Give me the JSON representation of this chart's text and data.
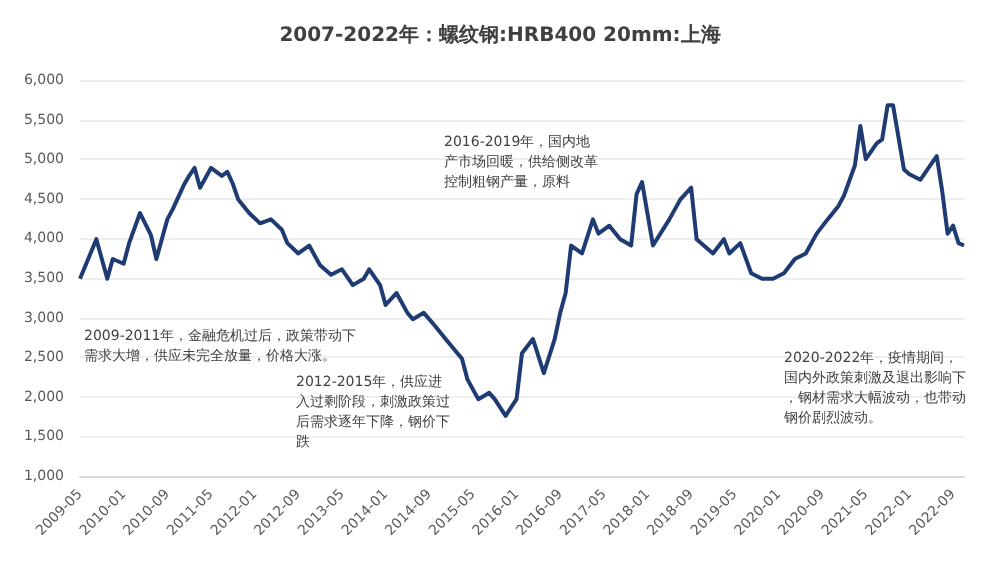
{
  "chart_data": {
    "type": "line",
    "title": "2007-2022年：螺纹钢:HRB400 20mm:上海",
    "x": [
      "2009-05",
      "2009-08",
      "2009-10",
      "2009-11",
      "2010-01",
      "2010-02",
      "2010-04",
      "2010-06",
      "2010-07",
      "2010-09",
      "2010-10",
      "2010-12",
      "2011-01",
      "2011-02",
      "2011-03",
      "2011-05",
      "2011-07",
      "2011-08",
      "2011-09",
      "2011-10",
      "2011-12",
      "2012-02",
      "2012-04",
      "2012-06",
      "2012-07",
      "2012-09",
      "2012-11",
      "2013-01",
      "2013-03",
      "2013-05",
      "2013-07",
      "2013-09",
      "2013-10",
      "2013-12",
      "2014-01",
      "2014-03",
      "2014-05",
      "2014-06",
      "2014-08",
      "2014-10",
      "2014-12",
      "2015-03",
      "2015-04",
      "2015-06",
      "2015-08",
      "2015-09",
      "2015-11",
      "2016-01",
      "2016-02",
      "2016-04",
      "2016-06",
      "2016-08",
      "2016-09",
      "2016-10",
      "2016-11",
      "2017-01",
      "2017-03",
      "2017-04",
      "2017-06",
      "2017-08",
      "2017-10",
      "2017-11",
      "2017-12",
      "2018-02",
      "2018-05",
      "2018-07",
      "2018-09",
      "2018-10",
      "2019-01",
      "2019-03",
      "2019-04",
      "2019-06",
      "2019-08",
      "2019-10",
      "2019-12",
      "2020-02",
      "2020-04",
      "2020-06",
      "2020-08",
      "2020-10",
      "2020-12",
      "2021-01",
      "2021-03",
      "2021-04",
      "2021-05",
      "2021-07",
      "2021-08",
      "2021-09",
      "2021-10",
      "2021-12",
      "2022-01",
      "2022-03",
      "2022-05",
      "2022-06",
      "2022-07",
      "2022-08",
      "2022-09",
      "2022-10",
      "2022-11"
    ],
    "series": [
      {
        "color": "#1f3b73",
        "values": [
          3490,
          3990,
          3490,
          3740,
          3680,
          3940,
          4320,
          4040,
          3740,
          4240,
          4370,
          4670,
          4790,
          4890,
          4640,
          4890,
          4790,
          4840,
          4690,
          4490,
          4320,
          4190,
          4240,
          4110,
          3940,
          3810,
          3910,
          3660,
          3540,
          3610,
          3410,
          3490,
          3610,
          3410,
          3160,
          3310,
          3060,
          2980,
          3060,
          2900,
          2730,
          2480,
          2220,
          1970,
          2050,
          1970,
          1760,
          1970,
          2550,
          2730,
          2300,
          2730,
          3060,
          3310,
          3910,
          3810,
          4240,
          4060,
          4160,
          3990,
          3910,
          4560,
          4710,
          3910,
          4240,
          4490,
          4640,
          3990,
          3810,
          3990,
          3810,
          3940,
          3560,
          3490,
          3490,
          3560,
          3740,
          3810,
          4060,
          4240,
          4410,
          4540,
          4920,
          5420,
          5000,
          5200,
          5250,
          5680,
          5680,
          4870,
          4810,
          4740,
          4940,
          5040,
          4600,
          4060,
          4160,
          3940,
          3910
        ]
      }
    ],
    "xlim": [
      "2009-05",
      "2022-11"
    ],
    "xticks": [
      "2009-05",
      "2010-01",
      "2010-09",
      "2011-05",
      "2012-01",
      "2012-09",
      "2013-05",
      "2014-01",
      "2014-09",
      "2015-05",
      "2016-01",
      "2016-09",
      "2017-05",
      "2018-01",
      "2018-09",
      "2019-05",
      "2020-01",
      "2020-09",
      "2021-05",
      "2022-01",
      "2022-09"
    ],
    "ylim": [
      1000,
      6000
    ],
    "yticks": [
      {
        "value": 1000,
        "label": "1,000"
      },
      {
        "value": 1500,
        "label": "1,500"
      },
      {
        "value": 2000,
        "label": "2,000"
      },
      {
        "value": 2500,
        "label": "2,500"
      },
      {
        "value": 3000,
        "label": "3,000"
      },
      {
        "value": 3500,
        "label": "3,500"
      },
      {
        "value": 4000,
        "label": "4,000"
      },
      {
        "value": 4500,
        "label": "4,500"
      },
      {
        "value": 5000,
        "label": "5,000"
      },
      {
        "value": 5500,
        "label": "5,500"
      },
      {
        "value": 6000,
        "label": "6,000"
      }
    ],
    "grid": "y",
    "marker": "none",
    "line_style": "solid",
    "annotations": [
      "2009-2011年，金融危机过后，政策带动下需求大增，供应未完全放量，价格大涨。",
      "2012-2015年，供应进入过剩阶段，刺激政策过后需求逐年下降，钢价下跌",
      "2016-2019年，国内地产市场回暖，供给侧改革控制粗钢产量，原料",
      "2020-2022年，疫情期间，国内外政策刺激及退出影响下，钢材需求大幅波动，也带动钢价剧烈波动。"
    ]
  }
}
